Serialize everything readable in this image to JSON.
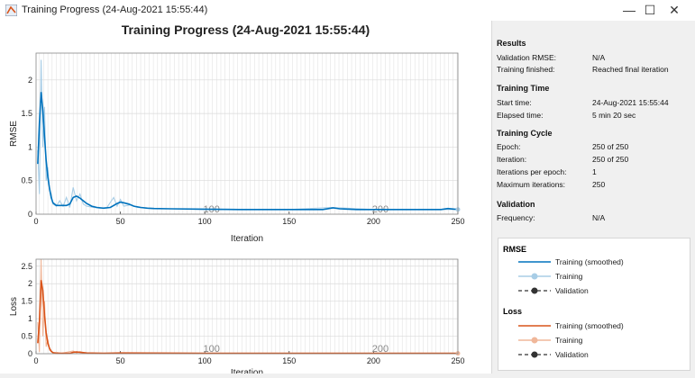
{
  "window": {
    "title": "Training Progress (24-Aug-2021 15:55:44)"
  },
  "controls": {
    "minimize": "—",
    "maximize": "☐",
    "close": "✕"
  },
  "figure": {
    "title": "Training Progress (24-Aug-2021 15:55:44)"
  },
  "colors": {
    "rmse_main": "#0072bd",
    "rmse_light": "#a8cde6",
    "loss_main": "#d95319",
    "loss_light": "#f0b79a",
    "validation": "#333333"
  },
  "results": {
    "heading": "Results",
    "rows": [
      {
        "label": "Validation RMSE:",
        "value": "N/A"
      },
      {
        "label": "Training finished:",
        "value": "Reached final iteration"
      }
    ]
  },
  "time": {
    "heading": "Training Time",
    "rows": [
      {
        "label": "Start time:",
        "value": "24-Aug-2021 15:55:44"
      },
      {
        "label": "Elapsed time:",
        "value": "5 min 20 sec"
      }
    ]
  },
  "cycle": {
    "heading": "Training Cycle",
    "rows": [
      {
        "label": "Epoch:",
        "value": "250 of 250"
      },
      {
        "label": "Iteration:",
        "value": "250 of 250"
      },
      {
        "label": "Iterations per epoch:",
        "value": "1"
      },
      {
        "label": "Maximum iterations:",
        "value": "250"
      }
    ]
  },
  "validation": {
    "heading": "Validation",
    "rows": [
      {
        "label": "Frequency:",
        "value": "N/A"
      }
    ]
  },
  "legend": {
    "rmse_heading": "RMSE",
    "rmse_items": [
      "Training (smoothed)",
      "Training",
      "Validation"
    ],
    "loss_heading": "Loss",
    "loss_items": [
      "Training (smoothed)",
      "Training",
      "Validation"
    ]
  },
  "chart_data": [
    {
      "type": "line",
      "ylabel": "RMSE",
      "xlabel": "Iteration",
      "xlim": [
        0,
        250
      ],
      "ylim": [
        0,
        2.4
      ],
      "xticks": [
        0,
        50,
        100,
        150,
        200,
        250
      ],
      "yticks": [
        0,
        0.5,
        1,
        1.5,
        2
      ],
      "ytick_labels": [
        "0",
        "0.5",
        "1",
        "1.5",
        "2"
      ],
      "annotations": [
        {
          "x": 104,
          "text": "100"
        },
        {
          "x": 204,
          "text": "200"
        }
      ],
      "series": [
        {
          "name": "Training (smoothed)",
          "color": "#0072bd",
          "x": [
            1,
            2,
            3,
            4,
            5,
            6,
            7,
            8,
            9,
            10,
            12,
            14,
            16,
            18,
            20,
            22,
            24,
            26,
            28,
            30,
            33,
            36,
            40,
            44,
            46,
            48,
            50,
            52,
            55,
            58,
            62,
            66,
            70,
            80,
            100,
            120,
            140,
            160,
            170,
            176,
            180,
            190,
            200,
            210,
            220,
            230,
            240,
            244,
            248,
            250
          ],
          "values": [
            0.75,
            1.35,
            1.82,
            1.55,
            1.15,
            0.8,
            0.55,
            0.38,
            0.25,
            0.17,
            0.13,
            0.13,
            0.13,
            0.13,
            0.15,
            0.25,
            0.27,
            0.24,
            0.2,
            0.16,
            0.12,
            0.1,
            0.09,
            0.1,
            0.13,
            0.16,
            0.18,
            0.17,
            0.15,
            0.12,
            0.1,
            0.09,
            0.085,
            0.08,
            0.075,
            0.07,
            0.07,
            0.07,
            0.07,
            0.095,
            0.08,
            0.07,
            0.07,
            0.07,
            0.07,
            0.07,
            0.07,
            0.085,
            0.075,
            0.075
          ]
        },
        {
          "name": "Training",
          "color": "#a8cde6",
          "x": [
            1,
            2,
            3,
            4,
            5,
            6,
            7,
            8,
            9,
            10,
            12,
            14,
            16,
            18,
            20,
            22,
            24,
            26,
            28,
            30,
            34,
            38,
            42,
            46,
            48,
            50,
            52,
            56,
            60,
            70,
            80,
            100,
            150,
            175,
            200,
            250
          ],
          "values": [
            0.95,
            0.3,
            2.3,
            1.0,
            1.6,
            0.5,
            0.7,
            0.35,
            0.3,
            0.15,
            0.12,
            0.2,
            0.12,
            0.25,
            0.1,
            0.4,
            0.2,
            0.3,
            0.15,
            0.12,
            0.1,
            0.09,
            0.1,
            0.25,
            0.12,
            0.22,
            0.12,
            0.14,
            0.1,
            0.08,
            0.08,
            0.07,
            0.07,
            0.1,
            0.07,
            0.07
          ]
        }
      ]
    },
    {
      "type": "line",
      "ylabel": "Loss",
      "xlabel": "Iteration",
      "xlim": [
        0,
        250
      ],
      "ylim": [
        0,
        2.7
      ],
      "xticks": [
        0,
        50,
        100,
        150,
        200,
        250
      ],
      "yticks": [
        0,
        0.5,
        1,
        1.5,
        2,
        2.5
      ],
      "ytick_labels": [
        "0",
        "0.5",
        "1",
        "1.5",
        "2",
        "2.5"
      ],
      "annotations": [
        {
          "x": 104,
          "text": "100"
        },
        {
          "x": 204,
          "text": "200"
        }
      ],
      "series": [
        {
          "name": "Training (smoothed)",
          "color": "#d95319",
          "x": [
            1,
            2,
            3,
            4,
            5,
            6,
            7,
            8,
            9,
            10,
            12,
            15,
            20,
            22,
            24,
            26,
            30,
            40,
            50,
            100,
            150,
            200,
            250
          ],
          "values": [
            0.3,
            0.9,
            2.1,
            1.8,
            1.1,
            0.6,
            0.3,
            0.15,
            0.07,
            0.03,
            0.01,
            0.01,
            0.01,
            0.04,
            0.05,
            0.04,
            0.02,
            0.01,
            0.02,
            0.01,
            0.01,
            0.01,
            0.01
          ]
        },
        {
          "name": "Training",
          "color": "#f0b79a",
          "x": [
            1,
            2,
            3,
            4,
            5,
            6,
            7,
            8,
            9,
            10,
            12,
            15,
            22,
            24,
            26,
            30,
            50,
            100,
            150,
            200,
            250
          ],
          "values": [
            0.9,
            0.05,
            2.7,
            0.5,
            1.5,
            0.2,
            0.4,
            0.1,
            0.08,
            0.02,
            0.04,
            0.01,
            0.08,
            0.02,
            0.06,
            0.01,
            0.02,
            0.01,
            0.01,
            0.01,
            0.01
          ]
        }
      ]
    }
  ]
}
